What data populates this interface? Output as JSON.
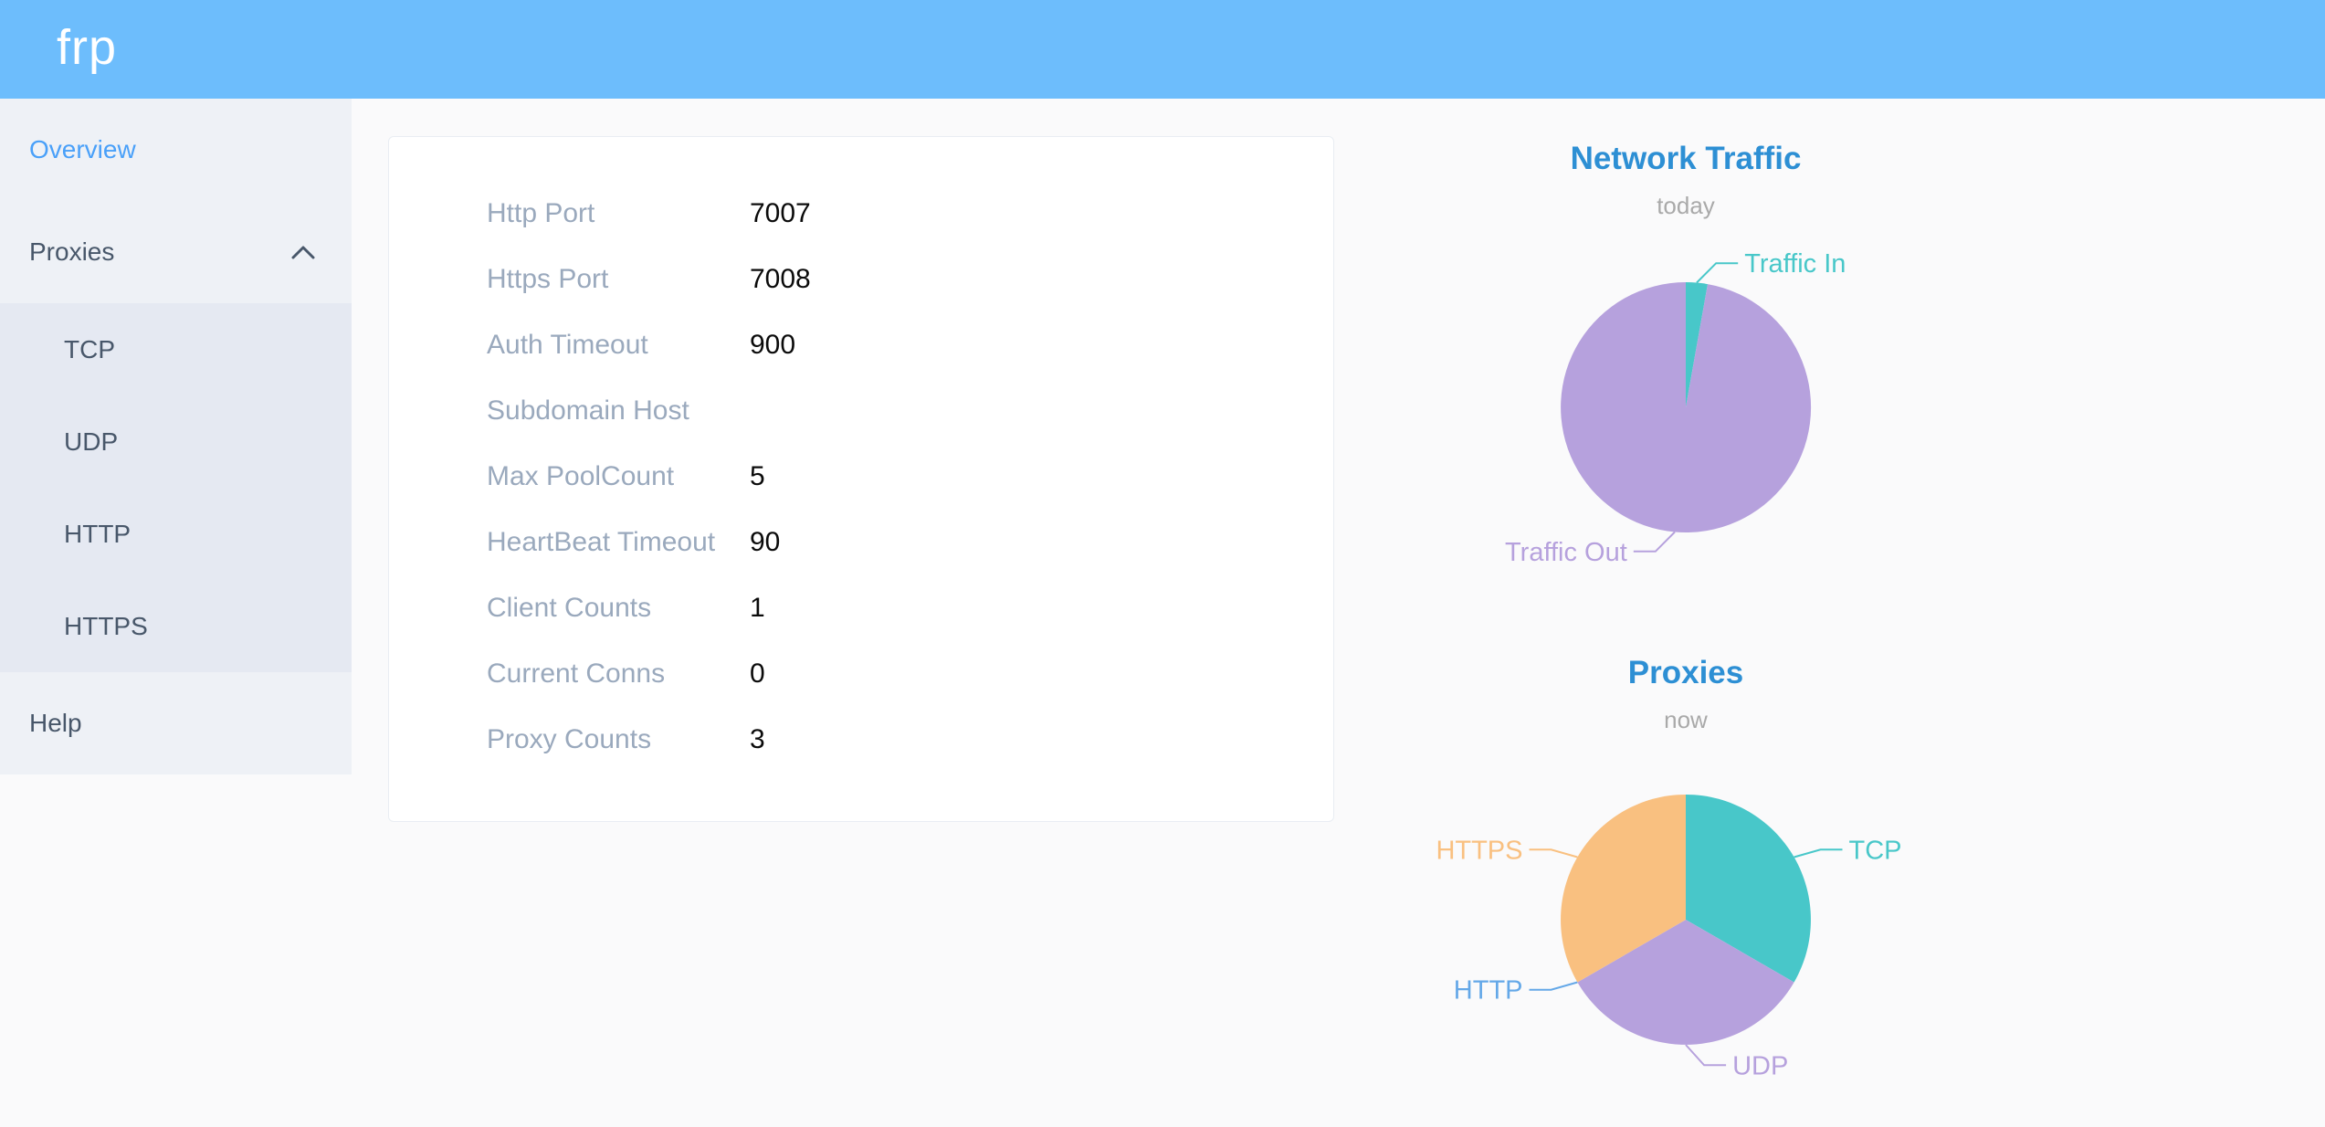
{
  "header": {
    "logo": "frp"
  },
  "sidebar": {
    "items": [
      {
        "label": "Overview",
        "active": true
      },
      {
        "label": "Proxies",
        "expanded": true
      },
      {
        "label": "TCP"
      },
      {
        "label": "UDP"
      },
      {
        "label": "HTTP"
      },
      {
        "label": "HTTPS"
      },
      {
        "label": "Help"
      }
    ]
  },
  "server_info": {
    "rows": [
      {
        "label": "Http Port",
        "value": "7007"
      },
      {
        "label": "Https Port",
        "value": "7008"
      },
      {
        "label": "Auth Timeout",
        "value": "900"
      },
      {
        "label": "Subdomain Host",
        "value": ""
      },
      {
        "label": "Max PoolCount",
        "value": "5"
      },
      {
        "label": "HeartBeat Timeout",
        "value": "90"
      },
      {
        "label": "Client Counts",
        "value": "1"
      },
      {
        "label": "Current Conns",
        "value": "0"
      },
      {
        "label": "Proxy Counts",
        "value": "3"
      }
    ]
  },
  "chart_data": [
    {
      "type": "pie",
      "title": "Network Traffic",
      "subtitle": "today",
      "labels": [
        "Traffic In",
        "Traffic Out"
      ],
      "values": [
        2.8,
        97.2
      ],
      "unit": "percent, estimated from arc angles",
      "colors": [
        "#48c7c9",
        "#b6a1dd"
      ],
      "start_angle_deg": 0,
      "clockwise": true,
      "legend_position": "callout-labels"
    },
    {
      "type": "pie",
      "title": "Proxies",
      "subtitle": "now",
      "labels": [
        "TCP",
        "UDP",
        "HTTP",
        "HTTPS"
      ],
      "values": [
        1,
        1,
        0,
        1
      ],
      "unit": "proxy count",
      "colors": [
        "#48c7c9",
        "#b6a1dd",
        "#64a8e8",
        "#f9c080"
      ],
      "start_angle_deg": 0,
      "clockwise": true,
      "legend_position": "callout-labels"
    }
  ],
  "ui_colors": {
    "header_background": "#6dbdfc",
    "sidebar_background": "#eef1f6",
    "submenu_background": "#e5e9f2",
    "sidebar_text": "#48576a",
    "active_menu_text": "#49a0f9",
    "chart_title": "#2d8fd4",
    "card_label": "#9aa9bd",
    "teal": "#48c7c9",
    "purple": "#b6a1dd",
    "blue": "#64a8e8",
    "orange": "#f9c080"
  }
}
